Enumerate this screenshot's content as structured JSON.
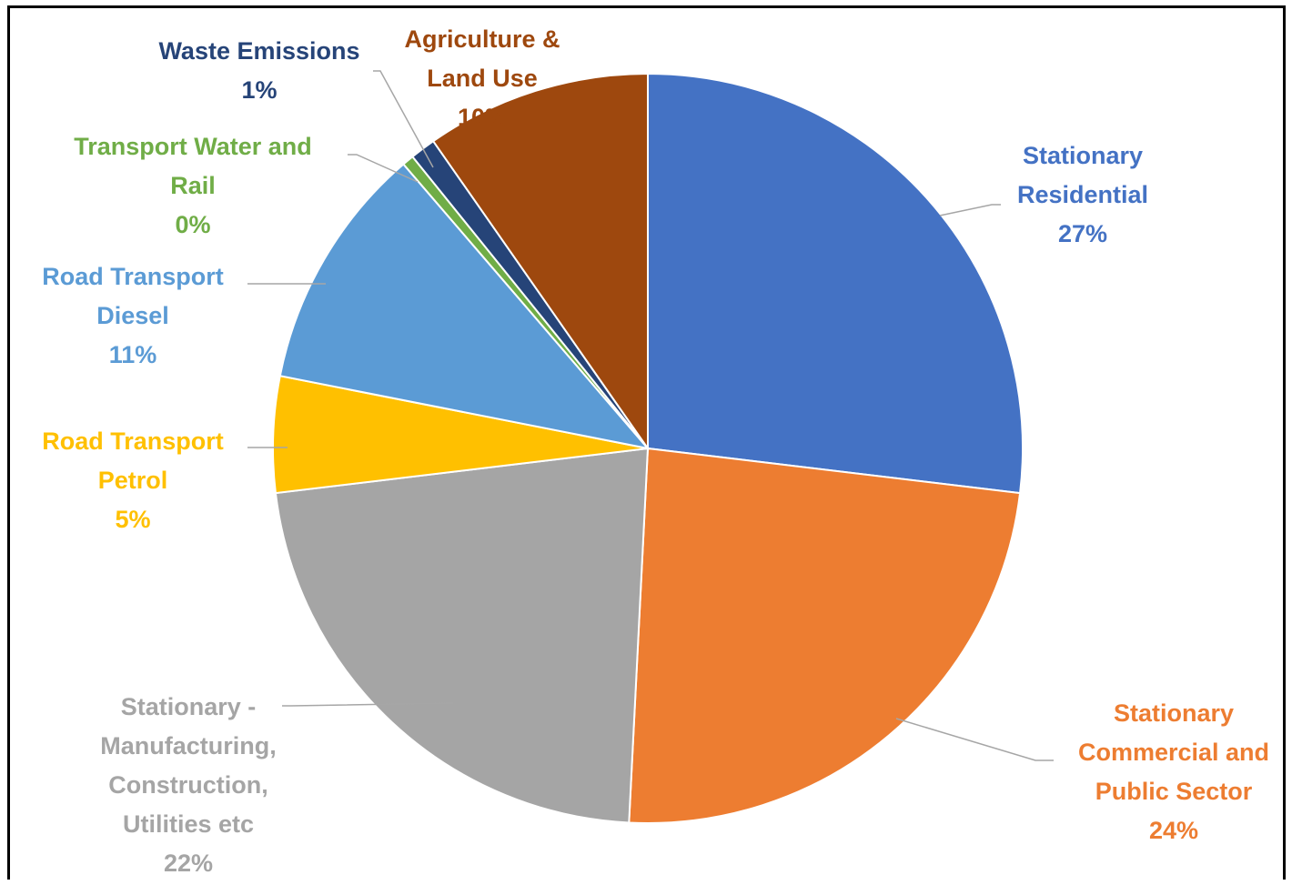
{
  "chart_data": {
    "type": "pie",
    "start_angle_deg": 0,
    "direction": "clockwise",
    "slices": [
      {
        "label_lines": [
          "Stationary",
          "Residential"
        ],
        "pct_text": "27%",
        "value": 26.9,
        "color": "#4472C4",
        "text_color": "#4472C4"
      },
      {
        "label_lines": [
          "Stationary",
          "Commercial and",
          "Public Sector"
        ],
        "pct_text": "24%",
        "value": 23.9,
        "color": "#ED7D31",
        "text_color": "#ED7D31"
      },
      {
        "label_lines": [
          "Stationary -",
          "Manufacturing,",
          "Construction,",
          "Utilities etc"
        ],
        "pct_text": "22%",
        "value": 22.3,
        "color": "#A5A5A5",
        "text_color": "#A5A5A5"
      },
      {
        "label_lines": [
          "Road Transport",
          "Petrol"
        ],
        "pct_text": "5%",
        "value": 5.0,
        "color": "#FFC000",
        "text_color": "#FFC000"
      },
      {
        "label_lines": [
          "Road Transport",
          "Diesel"
        ],
        "pct_text": "11%",
        "value": 10.6,
        "color": "#5B9BD5",
        "text_color": "#5B9BD5"
      },
      {
        "label_lines": [
          "Transport Water and",
          "Rail"
        ],
        "pct_text": "0%",
        "value": 0.5,
        "color": "#70AD47",
        "text_color": "#70AD47"
      },
      {
        "label_lines": [
          "Waste Emissions"
        ],
        "pct_text": "1%",
        "value": 1.1,
        "color": "#264478",
        "text_color": "#264478"
      },
      {
        "label_lines": [
          "Agriculture &",
          "Land Use"
        ],
        "pct_text": "10%",
        "value": 9.7,
        "color": "#9E480E",
        "text_color": "#9E480E"
      }
    ]
  }
}
